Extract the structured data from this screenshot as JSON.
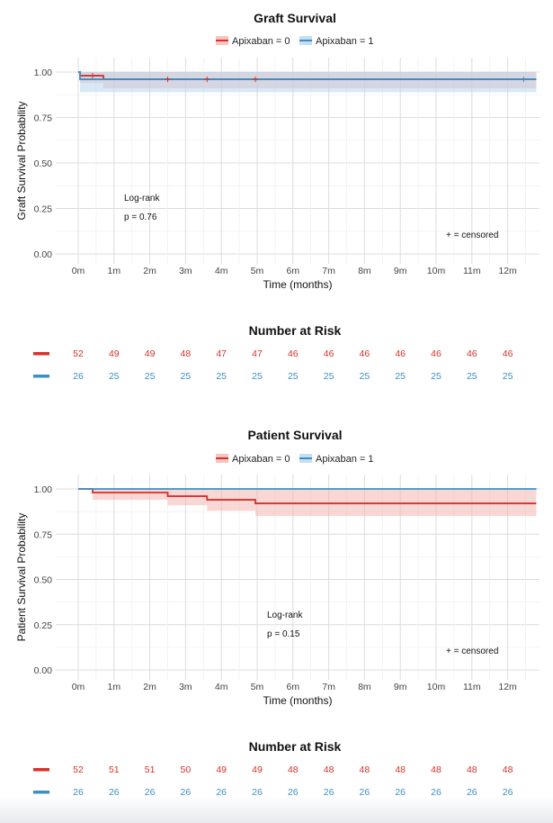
{
  "chart_data": [
    {
      "type": "line",
      "title": "Graft Survival",
      "xlabel": "Time (months)",
      "ylabel": "Graft Survival Probability",
      "xlim": [
        0,
        12.8
      ],
      "ylim": [
        0,
        1
      ],
      "x_ticks": [
        "0m",
        "1m",
        "2m",
        "3m",
        "4m",
        "5m",
        "6m",
        "7m",
        "8m",
        "9m",
        "10m",
        "11m",
        "12m"
      ],
      "y_ticks": [
        "0.00",
        "0.25",
        "0.50",
        "0.75",
        "1.00"
      ],
      "legend_position": "top",
      "series": [
        {
          "name": "Apixaban = 0",
          "color": "#d6312b",
          "fill": "#f4b6b3",
          "steps": [
            [
              0,
              1.0
            ],
            [
              0.05,
              0.98
            ],
            [
              0.7,
              0.96
            ],
            [
              12.8,
              0.96
            ]
          ],
          "ci": [
            [
              0,
              1.0,
              1.0
            ],
            [
              0.05,
              0.94,
              1.0
            ],
            [
              0.7,
              0.91,
              1.0
            ],
            [
              12.8,
              0.91,
              1.0
            ]
          ],
          "censored": [
            [
              0.4,
              0.98
            ],
            [
              2.5,
              0.96
            ],
            [
              3.6,
              0.96
            ],
            [
              4.95,
              0.96
            ]
          ]
        },
        {
          "name": "Apixaban = 1",
          "color": "#3d8fc2",
          "fill": "#b8d6ec",
          "steps": [
            [
              0,
              1.0
            ],
            [
              0.05,
              0.96
            ],
            [
              12.8,
              0.96
            ]
          ],
          "ci": [
            [
              0,
              1.0,
              1.0
            ],
            [
              0.05,
              0.89,
              1.0
            ],
            [
              12.8,
              0.89,
              1.0
            ]
          ],
          "censored": [
            [
              12.45,
              0.96
            ]
          ]
        }
      ],
      "annotations": {
        "test": "Log-rank",
        "pvalue": "p = 0.76",
        "censored_note": "+ = censored"
      }
    },
    {
      "type": "table",
      "title": "Number at Risk",
      "rows": [
        {
          "color": "#d6312b",
          "values": [
            "52",
            "49",
            "49",
            "48",
            "47",
            "47",
            "46",
            "46",
            "46",
            "46",
            "46",
            "46",
            "46"
          ]
        },
        {
          "color": "#3d8fc2",
          "values": [
            "26",
            "25",
            "25",
            "25",
            "25",
            "25",
            "25",
            "25",
            "25",
            "25",
            "25",
            "25",
            "25"
          ]
        }
      ]
    },
    {
      "type": "line",
      "title": "Patient Survival",
      "xlabel": "Time (months)",
      "ylabel": "Patient Survival Probability",
      "xlim": [
        0,
        12.8
      ],
      "ylim": [
        0,
        1
      ],
      "x_ticks": [
        "0m",
        "1m",
        "2m",
        "3m",
        "4m",
        "5m",
        "6m",
        "7m",
        "8m",
        "9m",
        "10m",
        "11m",
        "12m"
      ],
      "y_ticks": [
        "0.00",
        "0.25",
        "0.50",
        "0.75",
        "1.00"
      ],
      "legend_position": "top",
      "series": [
        {
          "name": "Apixaban = 0",
          "color": "#d6312b",
          "fill": "#f4b6b3",
          "steps": [
            [
              0,
              1.0
            ],
            [
              0.4,
              0.98
            ],
            [
              2.5,
              0.96
            ],
            [
              3.6,
              0.94
            ],
            [
              4.95,
              0.92
            ],
            [
              12.8,
              0.92
            ]
          ],
          "ci": [
            [
              0,
              1.0,
              1.0
            ],
            [
              0.4,
              0.94,
              1.0
            ],
            [
              2.5,
              0.91,
              1.0
            ],
            [
              3.6,
              0.88,
              1.0
            ],
            [
              4.95,
              0.85,
              1.0
            ],
            [
              12.8,
              0.85,
              1.0
            ]
          ],
          "censored": []
        },
        {
          "name": "Apixaban = 1",
          "color": "#3d8fc2",
          "fill": "#b8d6ec",
          "steps": [
            [
              0,
              1.0
            ],
            [
              12.8,
              1.0
            ]
          ],
          "ci": [
            [
              0,
              1.0,
              1.0
            ],
            [
              12.8,
              1.0,
              1.0
            ]
          ],
          "censored": []
        }
      ],
      "annotations": {
        "test": "Log-rank",
        "pvalue": "p = 0.15",
        "censored_note": "+ = censored"
      }
    },
    {
      "type": "table",
      "title": "Number at Risk",
      "rows": [
        {
          "color": "#d6312b",
          "values": [
            "52",
            "51",
            "51",
            "50",
            "49",
            "49",
            "48",
            "48",
            "48",
            "48",
            "48",
            "48",
            "48"
          ]
        },
        {
          "color": "#3d8fc2",
          "values": [
            "26",
            "26",
            "26",
            "26",
            "26",
            "26",
            "26",
            "26",
            "26",
            "26",
            "26",
            "26",
            "26"
          ]
        }
      ]
    }
  ]
}
